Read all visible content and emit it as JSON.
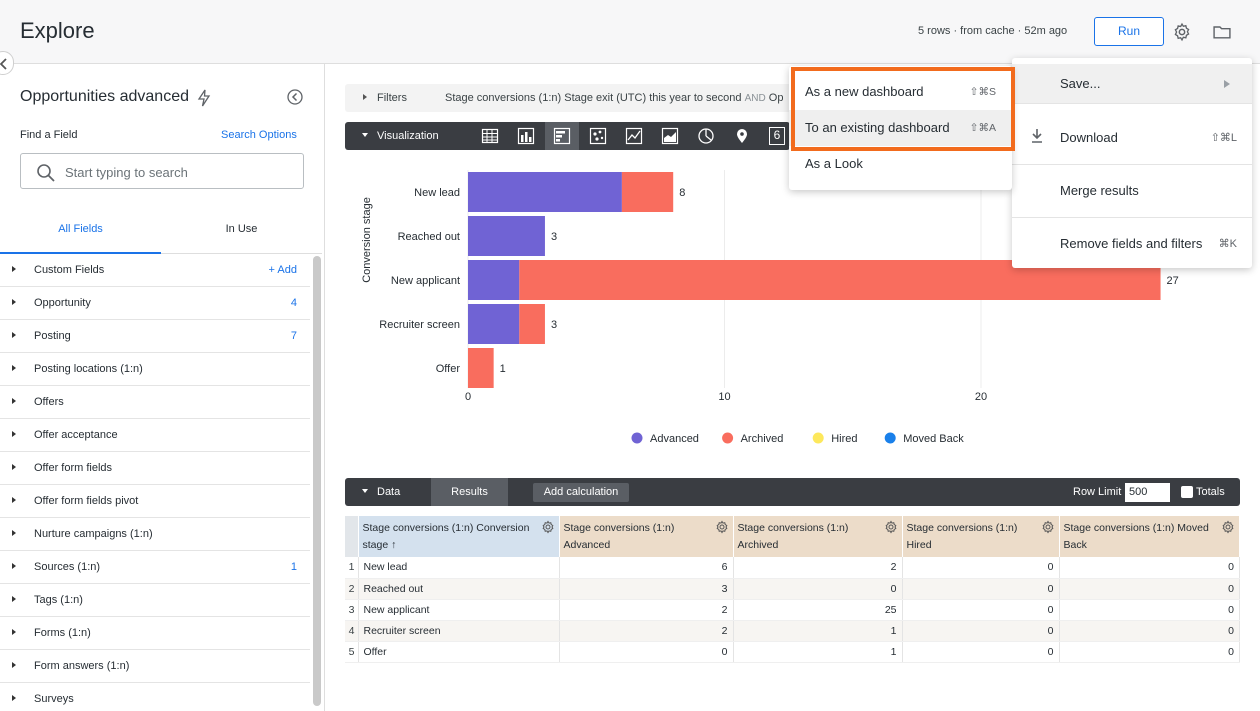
{
  "header": {
    "title": "Explore",
    "cache_status": "5 rows · from cache · 52m ago",
    "run_label": "Run"
  },
  "sidebar": {
    "model_name": "Opportunities advanced",
    "find_label": "Find a Field",
    "search_options_label": "Search Options",
    "search_placeholder": "Start typing to search",
    "tabs": [
      "All Fields",
      "In Use"
    ],
    "fields": [
      {
        "label": "Custom Fields",
        "count": "+ Add"
      },
      {
        "label": "Opportunity",
        "count": "4"
      },
      {
        "label": "Posting",
        "count": "7"
      },
      {
        "label": "Posting locations (1:n)",
        "count": ""
      },
      {
        "label": "Offers",
        "count": ""
      },
      {
        "label": "Offer acceptance",
        "count": ""
      },
      {
        "label": "Offer form fields",
        "count": ""
      },
      {
        "label": "Offer form fields pivot",
        "count": ""
      },
      {
        "label": "Nurture campaigns (1:n)",
        "count": ""
      },
      {
        "label": "Sources (1:n)",
        "count": "1"
      },
      {
        "label": "Tags (1:n)",
        "count": ""
      },
      {
        "label": "Forms (1:n)",
        "count": ""
      },
      {
        "label": "Form answers (1:n)",
        "count": ""
      },
      {
        "label": "Surveys",
        "count": ""
      }
    ]
  },
  "filters": {
    "label": "Filters",
    "description": "Stage conversions (1:n) Stage exit (UTC) this year to second",
    "and_label": "AND",
    "trailing": "Op"
  },
  "visualization": {
    "label": "Visualization",
    "icons": [
      "table-icon",
      "column-chart-icon",
      "bar-chart-icon",
      "scatter-icon",
      "line-chart-icon",
      "area-chart-icon",
      "pie-chart-icon",
      "map-pin-icon",
      "single-value-icon"
    ],
    "selected": "bar-chart-icon",
    "single_value_glyph": "6"
  },
  "chart_data": {
    "type": "bar",
    "orientation": "horizontal",
    "stacked": true,
    "categories": [
      "New lead",
      "Reached out",
      "New applicant",
      "Recruiter screen",
      "Offer"
    ],
    "series": [
      {
        "name": "Advanced",
        "color": "#7063d4",
        "values": [
          6,
          3,
          2,
          2,
          0
        ]
      },
      {
        "name": "Archived",
        "color": "#f96d5e",
        "values": [
          2,
          0,
          25,
          1,
          1
        ]
      },
      {
        "name": "Hired",
        "color": "#fde85c",
        "values": [
          0,
          0,
          0,
          0,
          0
        ]
      },
      {
        "name": "Moved Back",
        "color": "#1a80ea",
        "values": [
          0,
          0,
          0,
          0,
          0
        ]
      }
    ],
    "totals": [
      "8",
      "3",
      "27",
      "3",
      "1"
    ],
    "ylabel": "Conversion stage",
    "xticks": [
      "0",
      "10",
      "20"
    ],
    "xlim": [
      0,
      30
    ],
    "legend_position": "bottom"
  },
  "data_panel": {
    "label": "Data",
    "results_tab": "Results",
    "add_calc": "Add calculation",
    "row_limit_label": "Row Limit",
    "row_limit_value": "500",
    "totals_label": "Totals",
    "columns": [
      "Stage conversions (1:n) Conversion stage ↑",
      "Stage conversions (1:n) Advanced",
      "Stage conversions (1:n) Archived",
      "Stage conversions (1:n) Hired",
      "Stage conversions (1:n) Moved Back"
    ],
    "rows": [
      [
        "1",
        "New lead",
        "6",
        "2",
        "0",
        "0"
      ],
      [
        "2",
        "Reached out",
        "3",
        "0",
        "0",
        "0"
      ],
      [
        "3",
        "New applicant",
        "2",
        "25",
        "0",
        "0"
      ],
      [
        "4",
        "Recruiter screen",
        "2",
        "1",
        "0",
        "0"
      ],
      [
        "5",
        "Offer",
        "0",
        "1",
        "0",
        "0"
      ]
    ]
  },
  "gear_menu": {
    "items": [
      {
        "label": "Save...",
        "shortcut": ""
      },
      {
        "label": "Download",
        "shortcut": "⇧⌘L"
      },
      {
        "label": "Merge results",
        "shortcut": ""
      },
      {
        "label": "Remove fields and filters",
        "shortcut": "⌘K"
      }
    ]
  },
  "save_menu": {
    "items": [
      {
        "label": "As a new dashboard",
        "shortcut": "⇧⌘S"
      },
      {
        "label": "To an existing dashboard",
        "shortcut": "⇧⌘A"
      },
      {
        "label": "As a Look",
        "shortcut": ""
      }
    ]
  },
  "colors": {
    "accent": "#1a73e8",
    "highlight_border": "#f26b1d",
    "dark_bar": "#3a3d42"
  }
}
